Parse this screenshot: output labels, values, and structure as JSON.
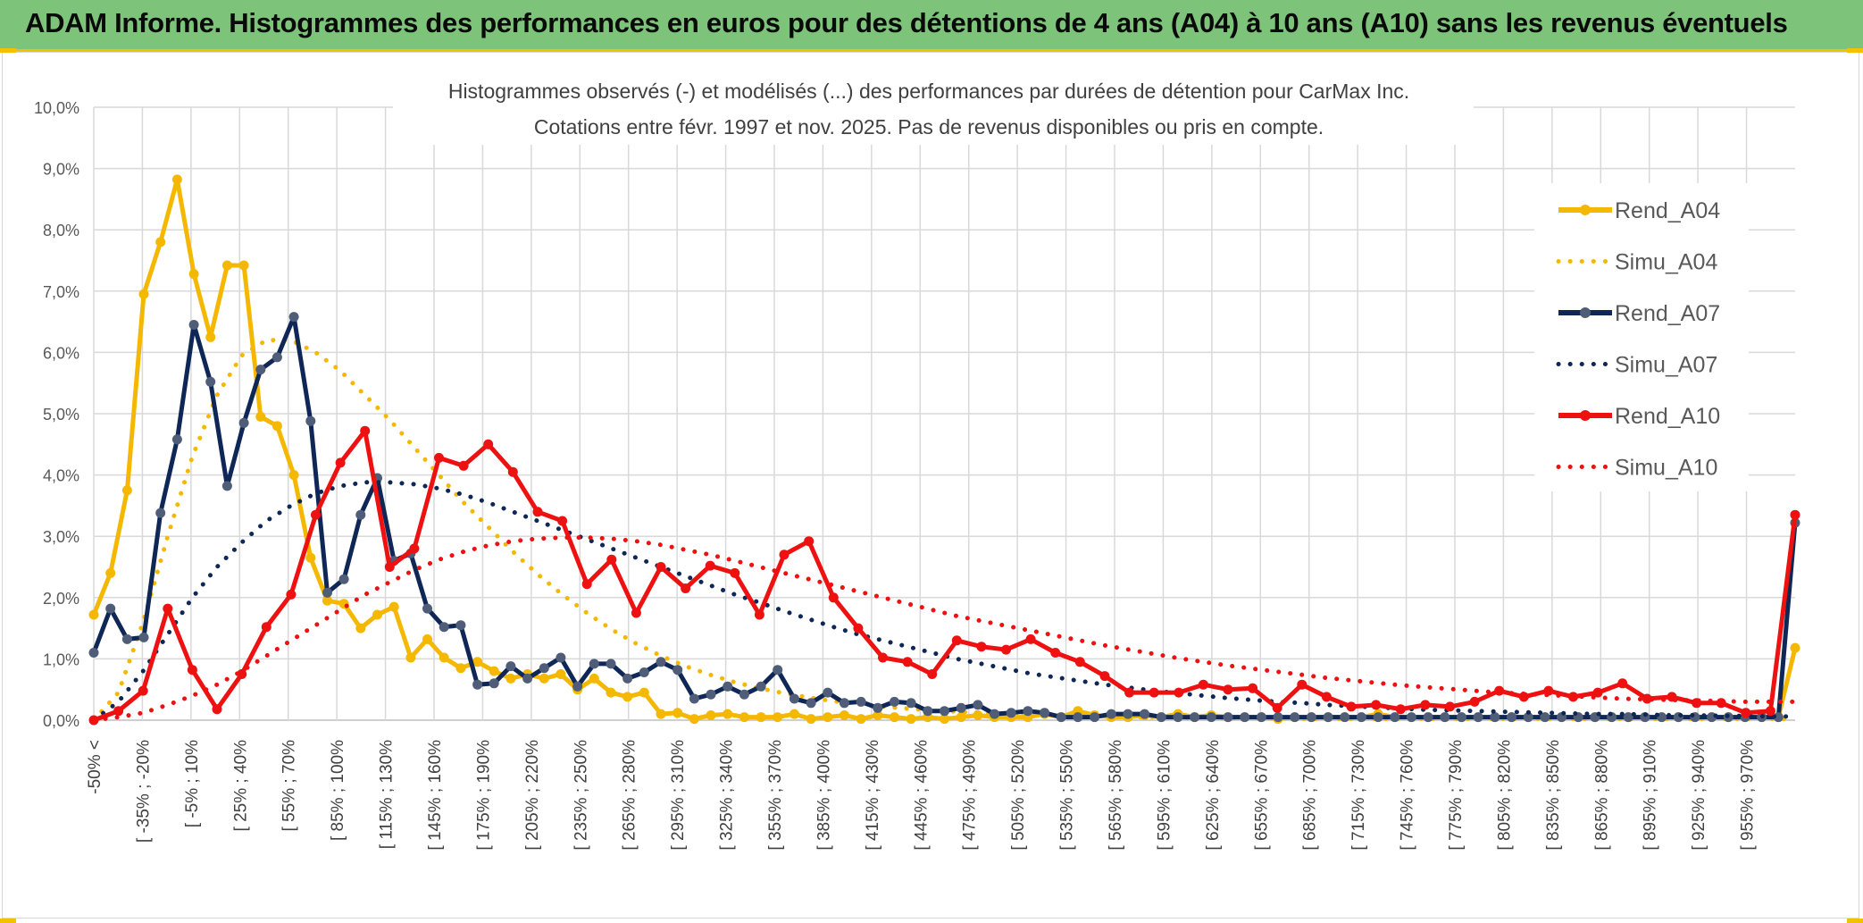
{
  "header": {
    "title": "ADAM Informe. Histogrammes des performances en euros pour des détentions de 4 ans (A04) à 10 ans (A10) sans les revenus éventuels"
  },
  "colors": {
    "banner": "#7dc47a",
    "accent": "#f2c200",
    "a04": "#f5b800",
    "a07": "#0f2757",
    "a10": "#ee1111",
    "grid": "#d9d9d9"
  },
  "chart_data": {
    "type": "line",
    "title": "Histogrammes observés (-) et modélisés (...) des performances par durées de détention pour CarMax Inc.",
    "subtitle": "Cotations entre févr. 1997 et nov. 2025. Pas de revenus disponibles ou pris en compte.",
    "ylim": [
      0,
      10
    ],
    "yticks": [
      "0,0%",
      "1,0%",
      "2,0%",
      "3,0%",
      "4,0%",
      "5,0%",
      "6,0%",
      "7,0%",
      "8,0%",
      "9,0%",
      "10,0%"
    ],
    "xlabels": [
      "-50% <",
      "[ -35% ; -20%",
      "[ -5% ; 10%",
      "[ 25% ; 40%",
      "[ 55% ; 70%",
      "[ 85% ; 100%",
      "[ 115% ; 130%",
      "[ 145% ; 160%",
      "[ 175% ; 190%",
      "[ 205% ; 220%",
      "[ 235% ; 250%",
      "[ 265% ; 280%",
      "[ 295% ; 310%",
      "[ 325% ; 340%",
      "[ 355% ; 370%",
      "[ 385% ; 400%",
      "[ 415% ; 430%",
      "[ 445% ; 460%",
      "[ 475% ; 490%",
      "[ 505% ; 520%",
      "[ 535% ; 550%",
      "[ 565% ; 580%",
      "[ 595% ; 610%",
      "[ 625% ; 640%",
      "[ 655% ; 670%",
      "[ 685% ; 700%",
      "[ 715% ; 730%",
      "[ 745% ; 760%",
      "[ 775% ; 790%",
      "[ 805% ; 820%",
      "[ 835% ; 850%",
      "[ 865% ; 880%",
      "[ 895% ; 910%",
      "[ 925% ; 940%",
      "[ 955% ; 970%"
    ],
    "series": [
      {
        "name": "Rend_A04",
        "style": "solid",
        "color": "#f5b800",
        "values": [
          1.72,
          2.4,
          3.75,
          6.95,
          7.8,
          8.82,
          7.28,
          6.25,
          7.42,
          7.42,
          4.95,
          4.8,
          4.0,
          2.65,
          1.95,
          1.9,
          1.5,
          1.72,
          1.85,
          1.02,
          1.32,
          1.02,
          0.85,
          0.95,
          0.8,
          0.68,
          0.75,
          0.68,
          0.75,
          0.5,
          0.68,
          0.45,
          0.38,
          0.45,
          0.1,
          0.12,
          0.02,
          0.08,
          0.1,
          0.05,
          0.05,
          0.05,
          0.1,
          0.02,
          0.05,
          0.08,
          0.02,
          0.08,
          0.05,
          0.02,
          0.05,
          0.02,
          0.05,
          0.08,
          0.05,
          0.05,
          0.05,
          0.1,
          0.05,
          0.15,
          0.08,
          0.05,
          0.05,
          0.08,
          0.05,
          0.1,
          0.05,
          0.08,
          0.05,
          0.05,
          0.05,
          0.02,
          0.05,
          0.05,
          0.05,
          0.05,
          0.05,
          0.1,
          0.05,
          0.05,
          0.05,
          0.05,
          0.05,
          0.05,
          0.05,
          0.05,
          0.05,
          0.05,
          0.05,
          0.05,
          0.05,
          0.05,
          0.05,
          0.05,
          0.05,
          0.05,
          0.05,
          0.05,
          0.05,
          0.05,
          0.05,
          0.05,
          1.18
        ]
      },
      {
        "name": "Simu_A04",
        "style": "dotted",
        "color": "#f5b800",
        "values": [
          0.0,
          0.45,
          1.6,
          3.0,
          4.3,
          5.3,
          5.95,
          6.2,
          6.2,
          6.0,
          5.7,
          5.3,
          4.9,
          4.45,
          4.0,
          3.55,
          3.15,
          2.75,
          2.38,
          2.05,
          1.75,
          1.48,
          1.25,
          1.05,
          0.88,
          0.74,
          0.62,
          0.52,
          0.44,
          0.37,
          0.31,
          0.26,
          0.22,
          0.19,
          0.16,
          0.14,
          0.12,
          0.1,
          0.09,
          0.08,
          0.07,
          0.06,
          0.05,
          0.05,
          0.04,
          0.04,
          0.03,
          0.03,
          0.03,
          0.02,
          0.02,
          0.02,
          0.02,
          0.02,
          0.02,
          0.02,
          0.02,
          0.02,
          0.02,
          0.02,
          0.02,
          0.02,
          0.02,
          0.02,
          0.02,
          0.02,
          0.02,
          0.02,
          0.02,
          0.02
        ]
      },
      {
        "name": "Rend_A07",
        "style": "solid",
        "color": "#0f2757",
        "values": [
          1.1,
          1.82,
          1.32,
          1.35,
          3.38,
          4.58,
          6.45,
          5.52,
          3.82,
          4.85,
          5.72,
          5.92,
          6.58,
          4.88,
          2.08,
          2.3,
          3.35,
          3.95,
          2.6,
          2.72,
          1.82,
          1.52,
          1.55,
          0.58,
          0.6,
          0.88,
          0.68,
          0.85,
          1.02,
          0.55,
          0.92,
          0.92,
          0.68,
          0.78,
          0.95,
          0.82,
          0.35,
          0.42,
          0.55,
          0.42,
          0.55,
          0.82,
          0.35,
          0.28,
          0.45,
          0.28,
          0.3,
          0.2,
          0.3,
          0.28,
          0.15,
          0.15,
          0.2,
          0.25,
          0.1,
          0.12,
          0.15,
          0.12,
          0.05,
          0.05,
          0.05,
          0.1,
          0.1,
          0.1,
          0.05,
          0.05,
          0.05,
          0.05,
          0.05,
          0.05,
          0.05,
          0.05,
          0.05,
          0.05,
          0.05,
          0.05,
          0.05,
          0.05,
          0.05,
          0.05,
          0.05,
          0.05,
          0.05,
          0.05,
          0.05,
          0.05,
          0.05,
          0.05,
          0.05,
          0.05,
          0.05,
          0.05,
          0.05,
          0.05,
          0.05,
          0.05,
          0.05,
          0.05,
          0.05,
          0.05,
          0.05,
          0.05,
          3.22
        ]
      },
      {
        "name": "Simu_A07",
        "style": "dotted",
        "color": "#0f2757",
        "values": [
          0.0,
          0.3,
          0.8,
          1.4,
          2.0,
          2.5,
          2.9,
          3.25,
          3.5,
          3.7,
          3.82,
          3.88,
          3.88,
          3.85,
          3.78,
          3.68,
          3.55,
          3.4,
          3.25,
          3.1,
          2.95,
          2.8,
          2.65,
          2.5,
          2.35,
          2.2,
          2.05,
          1.92,
          1.78,
          1.65,
          1.52,
          1.4,
          1.3,
          1.2,
          1.1,
          1.0,
          0.92,
          0.84,
          0.76,
          0.7,
          0.64,
          0.58,
          0.53,
          0.48,
          0.44,
          0.4,
          0.36,
          0.33,
          0.3,
          0.28,
          0.25,
          0.23,
          0.21,
          0.19,
          0.17,
          0.16,
          0.15,
          0.14,
          0.13,
          0.12,
          0.11,
          0.1,
          0.1,
          0.09,
          0.08,
          0.08,
          0.07,
          0.07,
          0.06,
          0.06
        ]
      },
      {
        "name": "Rend_A10",
        "style": "solid",
        "color": "#ee1111",
        "values": [
          0.0,
          0.15,
          0.48,
          1.82,
          0.82,
          0.18,
          0.75,
          1.52,
          2.05,
          3.35,
          4.2,
          4.72,
          2.5,
          2.8,
          4.28,
          4.15,
          4.5,
          4.05,
          3.4,
          3.25,
          2.22,
          2.62,
          1.75,
          2.5,
          2.15,
          2.52,
          2.4,
          1.72,
          2.7,
          2.92,
          2.0,
          1.5,
          1.02,
          0.95,
          0.75,
          1.3,
          1.2,
          1.15,
          1.32,
          1.1,
          0.95,
          0.72,
          0.45,
          0.45,
          0.45,
          0.58,
          0.5,
          0.52,
          0.2,
          0.58,
          0.38,
          0.22,
          0.25,
          0.18,
          0.25,
          0.22,
          0.3,
          0.48,
          0.38,
          0.48,
          0.38,
          0.45,
          0.6,
          0.35,
          0.38,
          0.28,
          0.28,
          0.12,
          0.15,
          3.35
        ]
      },
      {
        "name": "Simu_A10",
        "style": "dotted",
        "color": "#ee1111",
        "values": [
          0.0,
          0.05,
          0.12,
          0.25,
          0.4,
          0.58,
          0.8,
          1.05,
          1.3,
          1.55,
          1.8,
          2.05,
          2.25,
          2.45,
          2.62,
          2.75,
          2.85,
          2.92,
          2.96,
          2.98,
          2.98,
          2.96,
          2.92,
          2.86,
          2.78,
          2.7,
          2.6,
          2.5,
          2.4,
          2.3,
          2.2,
          2.1,
          2.0,
          1.9,
          1.8,
          1.7,
          1.62,
          1.54,
          1.46,
          1.38,
          1.3,
          1.22,
          1.15,
          1.08,
          1.01,
          0.95,
          0.89,
          0.84,
          0.79,
          0.74,
          0.69,
          0.65,
          0.61,
          0.57,
          0.54,
          0.51,
          0.48,
          0.45,
          0.43,
          0.41,
          0.39,
          0.37,
          0.35,
          0.34,
          0.33,
          0.32,
          0.31,
          0.3,
          0.3,
          0.3
        ]
      }
    ],
    "legend_position": "right",
    "grid": true
  }
}
